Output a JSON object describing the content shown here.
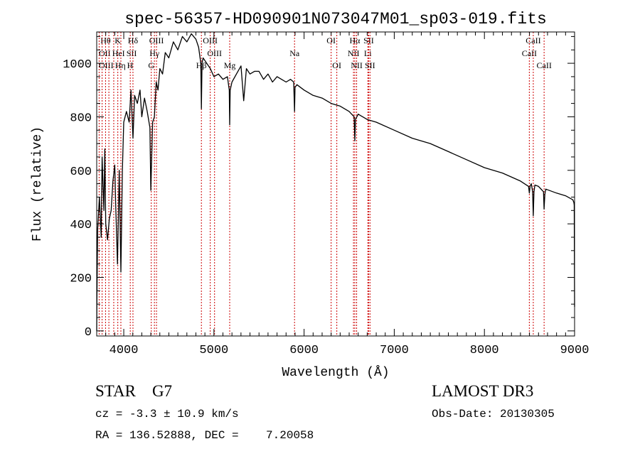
{
  "chart_data": {
    "type": "line",
    "title": "spec-56357-HD090901N073047M01_sp03-019.fits",
    "xlabel": "Wavelength (Å)",
    "ylabel": "Flux (relative)",
    "xlim": [
      3700,
      9000
    ],
    "ylim": [
      -19,
      1117
    ],
    "xticks": [
      4000,
      5000,
      6000,
      7000,
      8000,
      9000
    ],
    "xtick_labels": [
      "4000",
      "5000",
      "6000",
      "7000",
      "8000",
      "9000"
    ],
    "yticks": [
      0,
      200,
      400,
      600,
      800,
      1000
    ],
    "ytick_labels": [
      "0",
      "200",
      "400",
      "600",
      "800",
      "1000"
    ],
    "grid": false,
    "series": [
      {
        "name": "spectrum",
        "color": "#000000",
        "x": [
          3700,
          3702,
          3710,
          3730,
          3750,
          3760,
          3780,
          3790,
          3800,
          3820,
          3840,
          3860,
          3880,
          3900,
          3910,
          3930,
          3950,
          3968,
          3985,
          4000,
          4030,
          4060,
          4080,
          4102,
          4120,
          4150,
          4180,
          4200,
          4230,
          4260,
          4290,
          4300,
          4320,
          4340,
          4360,
          4380,
          4400,
          4430,
          4460,
          4500,
          4550,
          4600,
          4650,
          4700,
          4750,
          4800,
          4830,
          4855,
          4861,
          4868,
          4880,
          4920,
          4960,
          5000,
          5050,
          5100,
          5150,
          5170,
          5175,
          5180,
          5200,
          5250,
          5300,
          5330,
          5360,
          5400,
          5450,
          5500,
          5550,
          5600,
          5650,
          5700,
          5750,
          5800,
          5850,
          5885,
          5894,
          5900,
          5920,
          6000,
          6100,
          6200,
          6300,
          6400,
          6500,
          6555,
          6563,
          6570,
          6600,
          6700,
          6800,
          7000,
          7200,
          7400,
          7600,
          7800,
          8000,
          8200,
          8400,
          8490,
          8498,
          8506,
          8520,
          8535,
          8542,
          8550,
          8560,
          8600,
          8655,
          8662,
          8670,
          8680,
          8800,
          8900,
          8980,
          8992,
          8996,
          9000
        ],
        "y": [
          0,
          120,
          380,
          500,
          350,
          650,
          450,
          680,
          400,
          340,
          420,
          450,
          560,
          620,
          480,
          250,
          600,
          220,
          600,
          780,
          820,
          780,
          900,
          720,
          880,
          850,
          900,
          800,
          870,
          820,
          760,
          525,
          780,
          800,
          930,
          900,
          980,
          960,
          1040,
          1020,
          1080,
          1050,
          1100,
          1080,
          1110,
          1090,
          1060,
          1000,
          830,
          1000,
          1020,
          1000,
          980,
          950,
          960,
          940,
          950,
          900,
          770,
          900,
          930,
          960,
          990,
          860,
          980,
          960,
          970,
          970,
          940,
          960,
          930,
          950,
          940,
          930,
          940,
          930,
          820,
          910,
          920,
          900,
          880,
          870,
          850,
          840,
          820,
          800,
          710,
          790,
          810,
          790,
          780,
          750,
          720,
          700,
          670,
          640,
          610,
          590,
          560,
          540,
          515,
          540,
          550,
          520,
          430,
          520,
          545,
          540,
          520,
          455,
          510,
          530,
          515,
          505,
          490,
          480,
          470,
          90
        ]
      }
    ],
    "lines": [
      {
        "label": "OII",
        "wl": 3727,
        "row": 2
      },
      {
        "label": "Hθ",
        "wl": 3798,
        "row": 1
      },
      {
        "label": "OIII",
        "wl": 3760,
        "row": 3
      },
      {
        "label": "Hη",
        "wl": 3835,
        "row": 3
      },
      {
        "label": "HeI",
        "wl": 3889,
        "row": 2
      },
      {
        "label": "K",
        "wl": 3934,
        "row": 1
      },
      {
        "label": "H",
        "wl": 3968,
        "row": 3
      },
      {
        "label": "SII",
        "wl": 4072,
        "row": 2
      },
      {
        "label": "Hδ",
        "wl": 4102,
        "row": 1
      },
      {
        "label": "G",
        "wl": 4305,
        "row": 3
      },
      {
        "label": "Hγ",
        "wl": 4340,
        "row": 2
      },
      {
        "label": "OIII",
        "wl": 4363,
        "row": 1
      },
      {
        "label": "Hβ",
        "wl": 4861,
        "row": 3
      },
      {
        "label": "OIII",
        "wl": 4959,
        "row": 1
      },
      {
        "label": "OIII",
        "wl": 5007,
        "row": 2
      },
      {
        "label": "Mg",
        "wl": 5175,
        "row": 3
      },
      {
        "label": "Na",
        "wl": 5894,
        "row": 2
      },
      {
        "label": "OI",
        "wl": 6300,
        "row": 1
      },
      {
        "label": "OI",
        "wl": 6363,
        "row": 3
      },
      {
        "label": "NII",
        "wl": 6548,
        "row": 2
      },
      {
        "label": "Hα",
        "wl": 6563,
        "row": 1
      },
      {
        "label": "NII",
        "wl": 6583,
        "row": 3
      },
      {
        "label": "Li",
        "wl": 6707,
        "row": 2
      },
      {
        "label": "SII",
        "wl": 6716,
        "row": 1
      },
      {
        "label": "SII",
        "wl": 6731,
        "row": 3
      },
      {
        "label": "CaII",
        "wl": 8498,
        "row": 2
      },
      {
        "label": "CaII",
        "wl": 8542,
        "row": 1
      },
      {
        "label": "CaII",
        "wl": 8662,
        "row": 3
      }
    ],
    "line_color": "#cc0000"
  },
  "info": {
    "class": "STAR    G7",
    "survey": "LAMOST DR3",
    "cz": "cz = -3.3 ± 10.9 km/s",
    "obs_date": "Obs-Date: 20130305",
    "coords": "RA = 136.52888, DEC =    7.20058"
  }
}
